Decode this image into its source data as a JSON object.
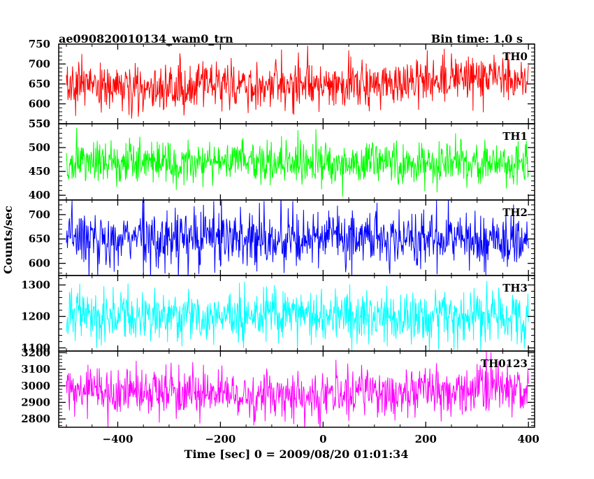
{
  "header": {
    "title": "ae090820010134_wam0_trn",
    "bin_time": "Bin time: 1.0 s"
  },
  "chart_data": {
    "type": "line",
    "title": "ae090820010134_wam0_trn",
    "subtitle": "Bin time: 1.0 s",
    "xlabel": "Time [sec] 0 = 2009/08/20 01:01:34",
    "ylabel": "Counts/sec",
    "xlim": [
      -515,
      412
    ],
    "x_range": [
      -500,
      400
    ],
    "x_ticks": [
      -400,
      -200,
      0,
      200,
      400
    ],
    "x_tick_labels": [
      "−400",
      "−200",
      "0",
      "200",
      "400"
    ],
    "bin_time_s": 1.0,
    "grid": false,
    "legend": "none",
    "panels": [
      {
        "name": "TH0",
        "color": "#ff0000",
        "ylim": [
          550,
          750
        ],
        "y_ticks": [
          550,
          600,
          650,
          700,
          750
        ],
        "y_tick_labels": [
          "550",
          "600",
          "650",
          "700",
          "750"
        ],
        "mean": 648,
        "spread": 30,
        "trend": [
          [
            -500,
            645
          ],
          [
            -300,
            640
          ],
          [
            0,
            650
          ],
          [
            300,
            660
          ],
          [
            400,
            665
          ]
        ]
      },
      {
        "name": "TH1",
        "color": "#00ff00",
        "ylim": [
          390,
          550
        ],
        "y_ticks": [
          400,
          450,
          500,
          550
        ],
        "y_tick_labels": [
          "400",
          "450",
          "500",
          "550"
        ],
        "mean": 468,
        "spread": 24,
        "trend": [
          [
            -500,
            470
          ],
          [
            0,
            468
          ],
          [
            400,
            465
          ]
        ]
      },
      {
        "name": "TH2",
        "color": "#0000ff",
        "ylim": [
          575,
          730
        ],
        "y_ticks": [
          600,
          650,
          700
        ],
        "y_tick_labels": [
          "600",
          "650",
          "700"
        ],
        "mean": 652,
        "spread": 30,
        "trend": [
          [
            -500,
            655
          ],
          [
            0,
            650
          ],
          [
            400,
            650
          ]
        ]
      },
      {
        "name": "TH3",
        "color": "#00ffff",
        "ylim": [
          1090,
          1330
        ],
        "y_ticks": [
          1100,
          1200,
          1300
        ],
        "y_tick_labels": [
          "1100",
          "1200",
          "1300"
        ],
        "mean": 1200,
        "spread": 42,
        "trend": [
          [
            -500,
            1200
          ],
          [
            0,
            1200
          ],
          [
            400,
            1200
          ]
        ]
      },
      {
        "name": "TH0123",
        "color": "#ff00ff",
        "ylim": [
          2750,
          3210
        ],
        "y_ticks": [
          2800,
          2900,
          3000,
          3100,
          3200
        ],
        "y_tick_labels": [
          "2800",
          "2900",
          "3000",
          "3100",
          "3200"
        ],
        "mean": 2965,
        "spread": 75,
        "trend": [
          [
            -500,
            2970
          ],
          [
            -300,
            2960
          ],
          [
            0,
            2940
          ],
          [
            300,
            2980
          ],
          [
            400,
            2975
          ]
        ]
      }
    ]
  }
}
